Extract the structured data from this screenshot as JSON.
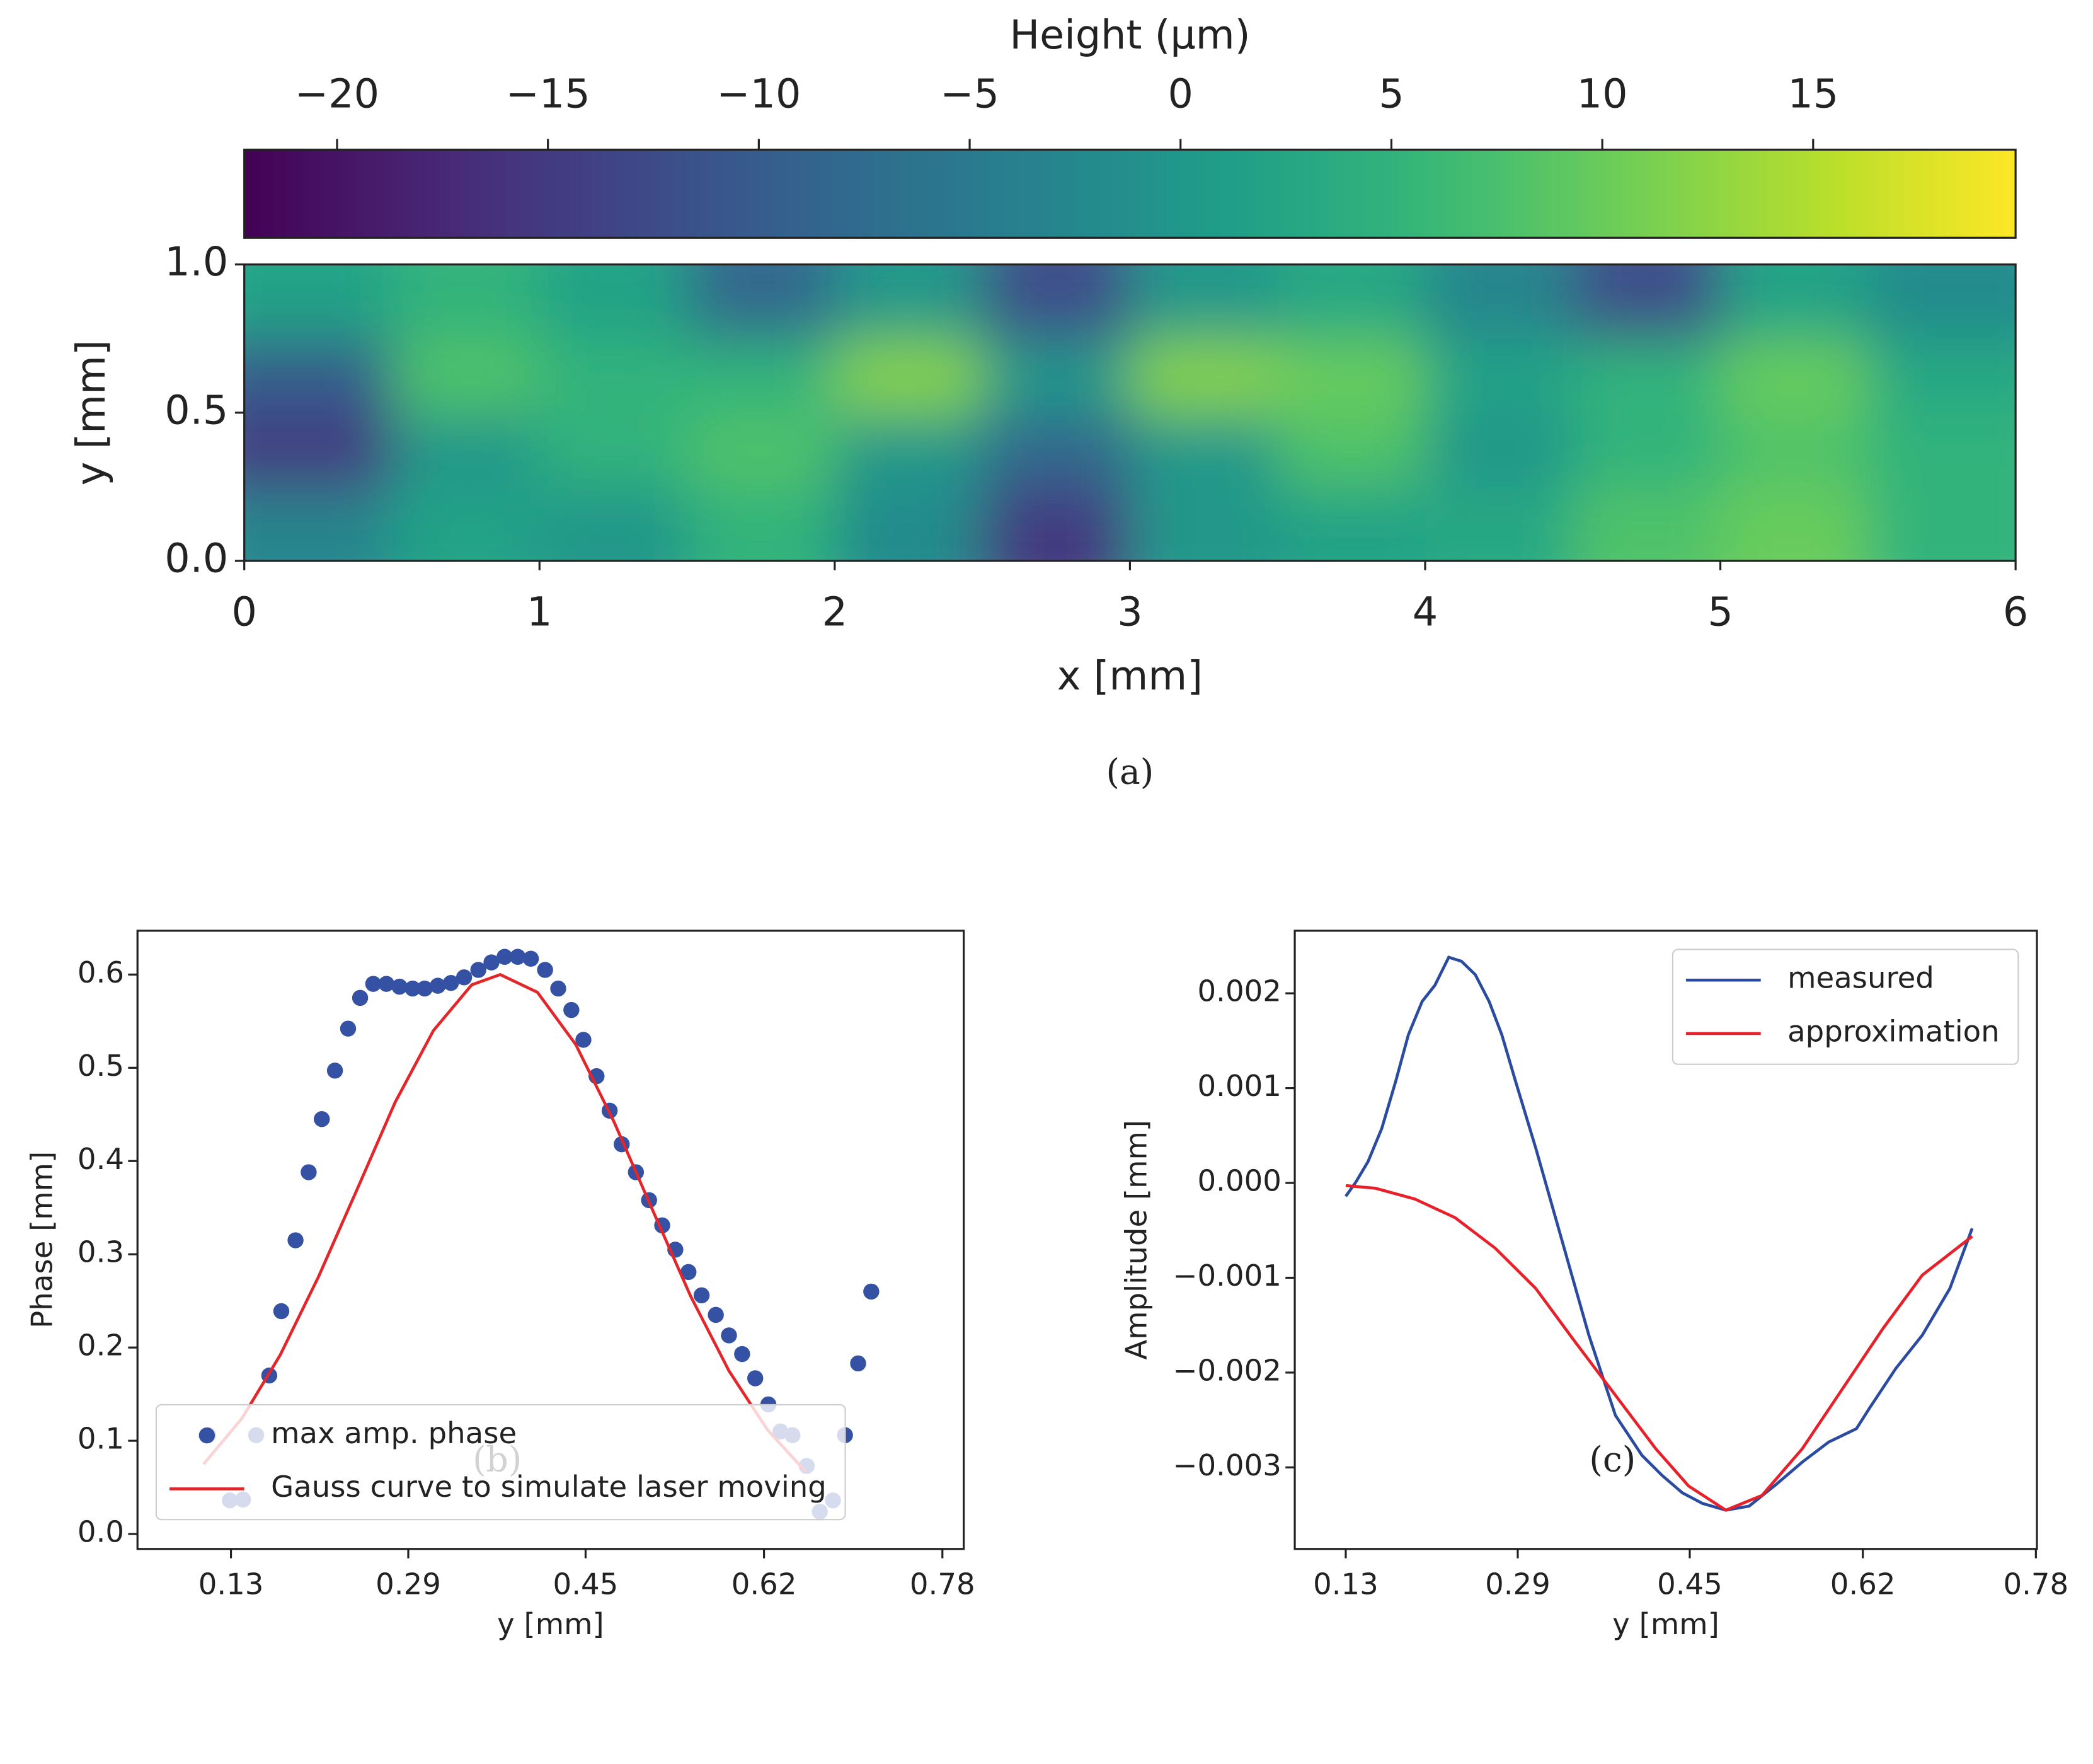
{
  "chart_data": [
    {
      "type": "heatmap",
      "title": "Height (μm)",
      "xlabel": "x [mm]",
      "ylabel": "y [mm]",
      "caption": "(a)",
      "colormap": "viridis",
      "xbins": [
        0,
        0.5,
        1,
        1.5,
        2,
        2.5,
        3,
        3.5,
        4,
        4.5,
        5,
        5.5,
        6
      ],
      "ybins": [
        0,
        0.25,
        0.5,
        0.75,
        1
      ],
      "values": [
        [
          -3,
          2,
          0,
          5,
          -2,
          -15,
          0,
          2,
          3,
          8,
          10,
          5
        ],
        [
          -15,
          0,
          5,
          8,
          0,
          -8,
          0,
          8,
          0,
          5,
          8,
          5
        ],
        [
          -10,
          8,
          5,
          5,
          12,
          0,
          12,
          10,
          2,
          5,
          10,
          3
        ],
        [
          2,
          5,
          2,
          -8,
          0,
          -12,
          0,
          3,
          -3,
          -12,
          2,
          -2
        ]
      ],
      "xlim": [
        0,
        6
      ],
      "ylim": [
        0,
        1
      ],
      "zlim": [
        -22.2,
        19.8
      ],
      "xticks": [
        0,
        1,
        2,
        3,
        4,
        5,
        6
      ],
      "yticks": [
        {
          "value": 0,
          "label": "0.0"
        },
        0.5,
        {
          "value": 1,
          "label": "1.0"
        }
      ],
      "zticks": [
        {
          "value": -20,
          "label": "−20"
        },
        {
          "value": -15,
          "label": "−15"
        },
        {
          "value": -10,
          "label": "−10"
        },
        {
          "value": -5,
          "label": "−5"
        },
        0,
        5,
        10,
        15
      ]
    },
    {
      "type": "scatter",
      "xlabel": "y [mm]",
      "ylabel": "Phase [mm]",
      "caption": "(b)",
      "legend": "lower left",
      "xlim": [
        0.0446,
        0.7995
      ],
      "ylim": [
        -0.016,
        0.647
      ],
      "xticks": [
        {
          "value": 0.13,
          "label": "0.13"
        },
        {
          "value": 0.292,
          "label": "0.29"
        },
        {
          "value": 0.454,
          "label": "0.45"
        },
        {
          "value": 0.617,
          "label": "0.62"
        },
        {
          "value": 0.78,
          "label": "0.78"
        }
      ],
      "yticks": [
        {
          "value": 0,
          "label": "0.0"
        },
        0.1,
        0.2,
        0.3,
        0.4,
        0.5,
        0.6
      ],
      "series": [
        {
          "name": "max amp. phase",
          "type": "scatter",
          "color": "#3451a3",
          "x": [
            0.109,
            0.129,
            0.141,
            0.153,
            0.165,
            0.176,
            0.189,
            0.201,
            0.213,
            0.225,
            0.237,
            0.248,
            0.26,
            0.272,
            0.284,
            0.296,
            0.307,
            0.319,
            0.331,
            0.343,
            0.356,
            0.368,
            0.38,
            0.392,
            0.404,
            0.417,
            0.429,
            0.441,
            0.452,
            0.464,
            0.476,
            0.487,
            0.5,
            0.512,
            0.524,
            0.536,
            0.548,
            0.56,
            0.573,
            0.585,
            0.597,
            0.609,
            0.621,
            0.632,
            0.643,
            0.656,
            0.668,
            0.68,
            0.691,
            0.703,
            0.715
          ],
          "values": [
            0.106,
            0.036,
            0.037,
            0.106,
            0.17,
            0.239,
            0.315,
            0.388,
            0.445,
            0.497,
            0.542,
            0.575,
            0.59,
            0.59,
            0.587,
            0.585,
            0.585,
            0.588,
            0.591,
            0.597,
            0.605,
            0.613,
            0.619,
            0.619,
            0.617,
            0.605,
            0.585,
            0.562,
            0.53,
            0.491,
            0.454,
            0.418,
            0.388,
            0.358,
            0.331,
            0.305,
            0.281,
            0.256,
            0.235,
            0.213,
            0.193,
            0.167,
            0.139,
            0.11,
            0.106,
            0.073,
            0.024,
            0.036,
            0.106,
            0.183,
            0.26
          ]
        },
        {
          "name": "Gauss curve to simulate laser moving",
          "type": "line",
          "color": "#e3262a",
          "x": [
            0.105,
            0.14,
            0.175,
            0.21,
            0.245,
            0.28,
            0.315,
            0.35,
            0.376,
            0.41,
            0.445,
            0.48,
            0.515,
            0.55,
            0.585,
            0.62,
            0.655
          ],
          "values": [
            0.075,
            0.124,
            0.192,
            0.276,
            0.369,
            0.463,
            0.54,
            0.589,
            0.6,
            0.581,
            0.525,
            0.442,
            0.348,
            0.255,
            0.175,
            0.112,
            0.067
          ]
        }
      ]
    },
    {
      "type": "line",
      "xlabel": "y [mm]",
      "ylabel": "Amplitude [mm]",
      "caption": "(c)",
      "legend": "upper right",
      "xlim": [
        0.082,
        0.781
      ],
      "ylim": [
        -0.00386,
        0.00266
      ],
      "xticks": [
        {
          "value": 0.13,
          "label": "0.13"
        },
        {
          "value": 0.292,
          "label": "0.29"
        },
        {
          "value": 0.454,
          "label": "0.45"
        },
        {
          "value": 0.617,
          "label": "0.62"
        },
        {
          "value": 0.78,
          "label": "0.78"
        }
      ],
      "yticks": [
        {
          "value": -0.003,
          "label": "−0.003"
        },
        {
          "value": -0.002,
          "label": "−0.002"
        },
        {
          "value": -0.001,
          "label": "−0.001"
        },
        {
          "value": 0,
          "label": "0.000"
        },
        0.001,
        0.002
      ],
      "series": [
        {
          "name": "measured",
          "color": "#2b4ba0",
          "x": [
            0.13,
            0.139,
            0.151,
            0.164,
            0.177,
            0.189,
            0.202,
            0.214,
            0.227,
            0.239,
            0.252,
            0.265,
            0.277,
            0.29,
            0.309,
            0.334,
            0.359,
            0.384,
            0.409,
            0.428,
            0.447,
            0.466,
            0.488,
            0.51,
            0.535,
            0.56,
            0.585,
            0.611,
            0.623,
            0.648,
            0.673,
            0.699,
            0.72
          ],
          "values": [
            -0.000141,
            0,
            0.000225,
            0.000577,
            0.00107,
            0.001563,
            0.001915,
            0.002085,
            0.00238,
            0.002338,
            0.002197,
            0.001915,
            0.001563,
            0.00107,
            0.000366,
            -0.00062,
            -0.001606,
            -0.002451,
            -0.002873,
            -0.003085,
            -0.003268,
            -0.00338,
            -0.003451,
            -0.003408,
            -0.003183,
            -0.002944,
            -0.002732,
            -0.002592,
            -0.00238,
            -0.001958,
            -0.001606,
            -0.001113,
            -0.000479
          ]
        },
        {
          "name": "approximation",
          "color": "#e8202a",
          "x": [
            0.13,
            0.158,
            0.195,
            0.233,
            0.271,
            0.309,
            0.346,
            0.384,
            0.422,
            0.453,
            0.488,
            0.522,
            0.56,
            0.598,
            0.636,
            0.673,
            0.72
          ],
          "values": [
            -2.8e-05,
            -5.6e-05,
            -0.000169,
            -0.000366,
            -0.00069,
            -0.001113,
            -0.001676,
            -0.002239,
            -0.002803,
            -0.003197,
            -0.003451,
            -0.003296,
            -0.002803,
            -0.002169,
            -0.001535,
            -0.000972,
            -0.000563
          ]
        }
      ]
    }
  ]
}
